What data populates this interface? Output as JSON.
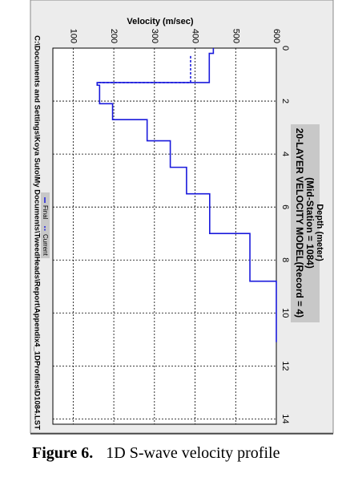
{
  "chart_data": {
    "type": "line",
    "title": "20-LAYER VELOCITY MODEL(Record = 4)",
    "subtitle": "(Mid-Station = 1084)",
    "xlabel": "Depth (meter)",
    "ylabel": "Velocity (m/sec)",
    "file_path": "C:\\Documents and Settings\\Koya Suto\\My Documents\\TweedHeads\\Report\\Appendix4_1DProfiles\\D1084.LST",
    "series": [
      {
        "name": "Final",
        "color": "#1a1adc",
        "dashed": false,
        "x": [
          0,
          0.2,
          0.2,
          1.3,
          1.3,
          1.4,
          1.4,
          2.1,
          2.1,
          2.7,
          2.7,
          3.5,
          3.5,
          4.5,
          4.5,
          5.5,
          5.5,
          7.0,
          7.0,
          8.8,
          8.8,
          11.1
        ],
        "values": [
          445,
          445,
          435,
          435,
          159,
          159,
          165,
          165,
          197,
          197,
          282,
          282,
          339,
          339,
          379,
          379,
          436,
          436,
          535,
          535,
          600,
          600
        ]
      },
      {
        "name": "Current",
        "color": "#1a1adc",
        "dashed": true,
        "x": [
          0.3,
          1.3,
          1.3,
          1.4
        ],
        "values": [
          389,
          389,
          159,
          159
        ]
      }
    ],
    "xlim": [
      0,
      14.2
    ],
    "xticks": [
      0,
      2,
      4,
      6,
      8,
      10,
      12,
      14
    ],
    "ylim": [
      50,
      600
    ],
    "yticks": [
      100,
      200,
      300,
      400,
      500,
      600
    ],
    "grid": true
  },
  "caption": {
    "label": "Figure 6.",
    "text": "1D S-wave velocity profile"
  }
}
